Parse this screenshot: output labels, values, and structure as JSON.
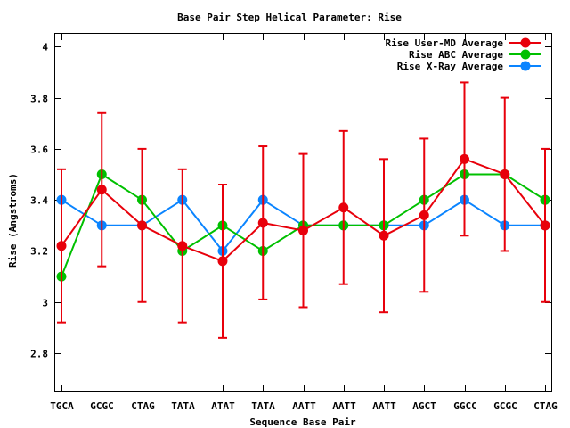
{
  "chart_data": {
    "type": "line",
    "title": "Base Pair Step Helical Parameter: Rise",
    "xlabel": "Sequence Base Pair",
    "ylabel": "Rise (Angstroms)",
    "categories": [
      "TGCA",
      "GCGC",
      "CTAG",
      "TATA",
      "ATAT",
      "TATA",
      "AATT",
      "AATT",
      "AATT",
      "AGCT",
      "GGCC",
      "GCGC",
      "CTAG"
    ],
    "ylim": [
      2.65,
      4.05
    ],
    "yticks": [
      2.8,
      3,
      3.2,
      3.4,
      3.6,
      3.8,
      4
    ],
    "ytick_labels": [
      "2.8",
      "3",
      "3.2",
      "3.4",
      "3.6",
      "3.8",
      "4"
    ],
    "grid": false,
    "legend_position": "top-right",
    "series": [
      {
        "name": "Rise User-MD Average",
        "color": "#e8000b",
        "values": [
          3.22,
          3.44,
          3.3,
          3.22,
          3.16,
          3.31,
          3.28,
          3.37,
          3.26,
          3.34,
          3.56,
          3.5,
          3.3
        ],
        "error": [
          0.3,
          0.3,
          0.3,
          0.3,
          0.3,
          0.3,
          0.3,
          0.3,
          0.3,
          0.3,
          0.3,
          0.3,
          0.3
        ]
      },
      {
        "name": "Rise ABC Average",
        "color": "#00c000",
        "values": [
          3.1,
          3.5,
          3.4,
          3.2,
          3.3,
          3.2,
          3.3,
          3.3,
          3.3,
          3.4,
          3.5,
          3.5,
          3.4
        ]
      },
      {
        "name": "Rise X-Ray Average",
        "color": "#0a84ff",
        "values": [
          3.4,
          3.3,
          3.3,
          3.4,
          3.2,
          3.4,
          3.3,
          3.3,
          3.3,
          3.3,
          3.4,
          3.3,
          3.3
        ]
      }
    ]
  }
}
